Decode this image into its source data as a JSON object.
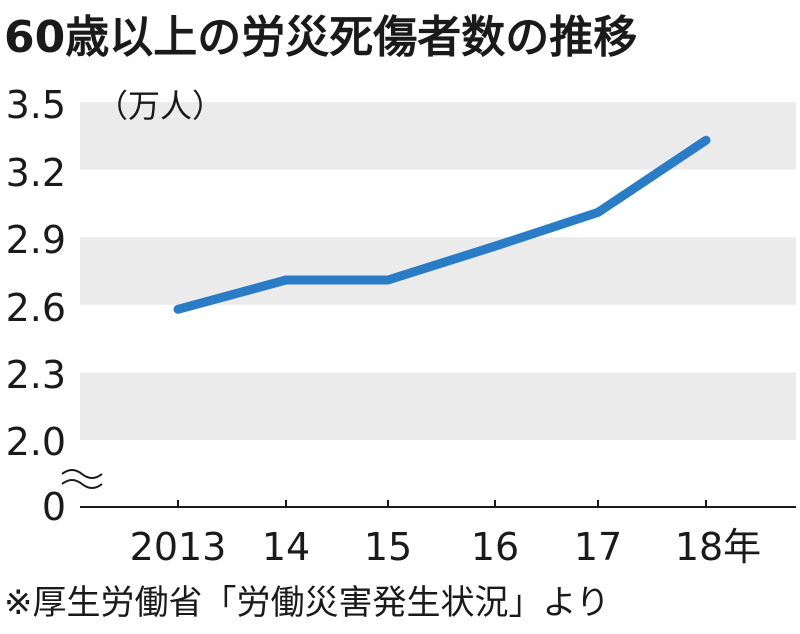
{
  "title": "60歳以上の労災死傷者数の推移",
  "source_note": "※厚生労働省「労働災害発生状況」より",
  "chart_data": {
    "type": "line",
    "title": "60歳以上の労災死傷者数の推移",
    "unit_label": "（万人）",
    "categories": [
      "2013",
      "14",
      "15",
      "16",
      "17",
      "18年"
    ],
    "series": [
      {
        "values": [
          2.58,
          2.71,
          2.71,
          2.86,
          3.01,
          3.33
        ]
      }
    ],
    "y_ticks": [
      "3.5",
      "3.2",
      "2.9",
      "2.6",
      "2.3",
      "2.0",
      "0"
    ],
    "ylim": [
      2.0,
      3.5
    ],
    "axis_break": true,
    "grid": "alternating horizontal bands",
    "colors": {
      "line": "#2a7cc6",
      "band": "#ebebeb",
      "axis": "#1a1a1a"
    }
  }
}
